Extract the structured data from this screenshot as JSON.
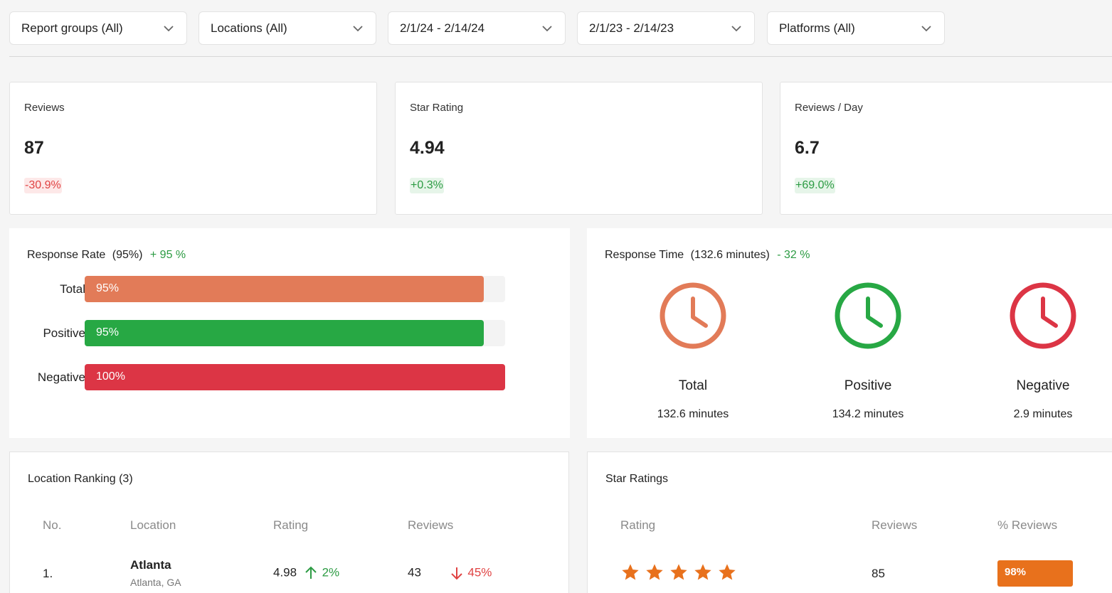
{
  "filters": [
    {
      "label": "Report groups (All)"
    },
    {
      "label": "Locations (All)"
    },
    {
      "label": "2/1/24 - 2/14/24"
    },
    {
      "label": "2/1/23 - 2/14/23"
    },
    {
      "label": "Platforms (All)"
    }
  ],
  "kpis": [
    {
      "title": "Reviews",
      "value": "87",
      "change": "-30.9%",
      "trend": "down"
    },
    {
      "title": "Star Rating",
      "value": "4.94",
      "change": "+0.3%",
      "trend": "up"
    },
    {
      "title": "Reviews / Day",
      "value": "6.7",
      "change": "+69.0%",
      "trend": "up"
    }
  ],
  "response_rate": {
    "title": "Response Rate",
    "overall": "(95%)",
    "delta": "+ 95 %",
    "rows": [
      {
        "label": "Total",
        "pct": "95%",
        "fraction": 0.95,
        "color": "#e27b58"
      },
      {
        "label": "Positive",
        "pct": "95%",
        "fraction": 0.95,
        "color": "#27a844"
      },
      {
        "label": "Negative",
        "pct": "100%",
        "fraction": 1.0,
        "color": "#dc3545"
      }
    ]
  },
  "response_time": {
    "title": "Response Time",
    "overall": "(132.6 minutes)",
    "delta": "- 32 %",
    "items": [
      {
        "label": "Total",
        "value": "132.6 minutes",
        "icon": "clock-icon",
        "color": "#e27b58"
      },
      {
        "label": "Positive",
        "value": "134.2 minutes",
        "icon": "clock-icon",
        "color": "#27a844"
      },
      {
        "label": "Negative",
        "value": "2.9 minutes",
        "icon": "clock-icon",
        "color": "#dc3545"
      }
    ]
  },
  "location_ranking": {
    "title": "Location Ranking (3)",
    "headers": {
      "no": "No.",
      "location": "Location",
      "rating": "Rating",
      "reviews": "Reviews"
    },
    "rows": [
      {
        "no": "1.",
        "name": "Atlanta",
        "sub": "Atlanta, GA",
        "rating": "4.98",
        "rating_change": "2%",
        "rating_trend": "up",
        "reviews": "43",
        "reviews_change": "45%",
        "reviews_trend": "down"
      }
    ]
  },
  "star_ratings": {
    "title": "Star Ratings",
    "headers": {
      "rating": "Rating",
      "reviews": "Reviews",
      "pct": "% Reviews"
    },
    "rows": [
      {
        "stars": 5,
        "reviews": "85",
        "pct": "98%"
      }
    ],
    "star_color": "#e8711c"
  }
}
